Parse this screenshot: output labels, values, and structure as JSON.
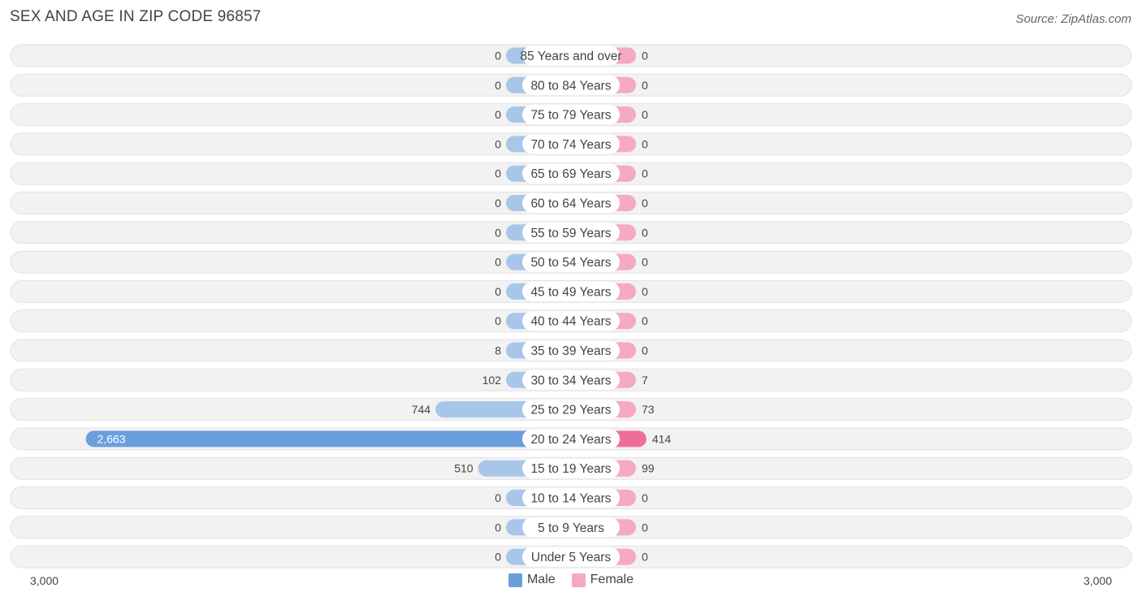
{
  "title": "SEX AND AGE IN ZIP CODE 96857",
  "source": "Source: ZipAtlas.com",
  "legend": {
    "male_label": "Male",
    "female_label": "Female"
  },
  "colors": {
    "male_light": "#a8c6e9",
    "male_strong": "#6a9fdc",
    "female_light": "#f6a9c2",
    "female_strong": "#ef6e98",
    "row_bg": "#f2f2f2"
  },
  "axis": {
    "left_label": "3,000",
    "right_label": "3,000"
  },
  "chart_data": {
    "type": "bar",
    "orientation": "horizontal-diverging",
    "title": "SEX AND AGE IN ZIP CODE 96857",
    "xlim": [
      -3000,
      3000
    ],
    "categories": [
      "85 Years and over",
      "80 to 84 Years",
      "75 to 79 Years",
      "70 to 74 Years",
      "65 to 69 Years",
      "60 to 64 Years",
      "55 to 59 Years",
      "50 to 54 Years",
      "45 to 49 Years",
      "40 to 44 Years",
      "35 to 39 Years",
      "30 to 34 Years",
      "25 to 29 Years",
      "20 to 24 Years",
      "15 to 19 Years",
      "10 to 14 Years",
      "5 to 9 Years",
      "Under 5 Years"
    ],
    "series": [
      {
        "name": "Male",
        "values": [
          0,
          0,
          0,
          0,
          0,
          0,
          0,
          0,
          0,
          0,
          8,
          102,
          744,
          2663,
          510,
          0,
          0,
          0
        ],
        "labels": [
          "0",
          "0",
          "0",
          "0",
          "0",
          "0",
          "0",
          "0",
          "0",
          "0",
          "8",
          "102",
          "744",
          "2,663",
          "510",
          "0",
          "0",
          "0"
        ]
      },
      {
        "name": "Female",
        "values": [
          0,
          0,
          0,
          0,
          0,
          0,
          0,
          0,
          0,
          0,
          0,
          7,
          73,
          414,
          99,
          0,
          0,
          0
        ],
        "labels": [
          "0",
          "0",
          "0",
          "0",
          "0",
          "0",
          "0",
          "0",
          "0",
          "0",
          "0",
          "7",
          "73",
          "414",
          "99",
          "0",
          "0",
          "0"
        ]
      }
    ],
    "legend_position": "bottom-center"
  }
}
